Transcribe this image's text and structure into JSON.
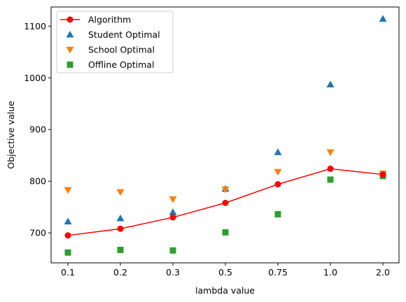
{
  "chart_data": {
    "type": "line",
    "title": "",
    "xlabel": "lambda value",
    "ylabel": "Objective value",
    "categories": [
      "0.1",
      "0.2",
      "0.3",
      "0.5",
      "0.75",
      "1.0",
      "2.0"
    ],
    "ylim": [
      642,
      1137
    ],
    "yticks": [
      700,
      800,
      900,
      1000,
      1100
    ],
    "yticks_labels": [
      "700",
      "800",
      "900",
      "1000",
      "1100"
    ],
    "grid": false,
    "legend": "top-left",
    "series": [
      {
        "name": "Algorithm",
        "style": "line-circle",
        "color": "#ff0000",
        "values": [
          695,
          708,
          730,
          758,
          794,
          824,
          813
        ]
      },
      {
        "name": "Student Optimal",
        "style": "triangle-up",
        "color": "#1f77b4",
        "values": [
          722,
          728,
          740,
          785,
          856,
          987,
          1114
        ]
      },
      {
        "name": "School Optimal",
        "style": "triangle-down",
        "color": "#ff7f0e",
        "values": [
          783,
          779,
          765,
          784,
          818,
          856,
          815
        ]
      },
      {
        "name": "Offline Optimal",
        "style": "square",
        "color": "#2ca02c",
        "values": [
          662,
          667,
          666,
          701,
          736,
          803,
          810
        ]
      }
    ]
  }
}
